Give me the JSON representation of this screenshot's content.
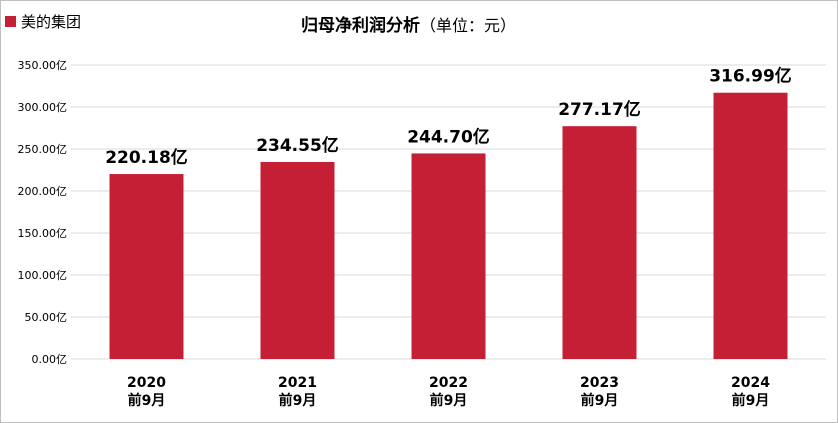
{
  "legend": {
    "label": "美的集团"
  },
  "title": {
    "main": "归母净利润分析",
    "unit": "（单位：元）"
  },
  "colors": {
    "bar": "#c41f35",
    "grid": "#d9d9d9"
  },
  "chart_data": {
    "type": "bar",
    "title": "归母净利润分析（单位：元）",
    "categories": [
      [
        "2020",
        "前9月"
      ],
      [
        "2021",
        "前9月"
      ],
      [
        "2022",
        "前9月"
      ],
      [
        "2023",
        "前9月"
      ],
      [
        "2024",
        "前9月"
      ]
    ],
    "series": [
      {
        "name": "美的集团",
        "values": [
          220.18,
          234.55,
          244.7,
          277.17,
          316.99
        ]
      }
    ],
    "data_labels": [
      "220.18亿",
      "234.55亿",
      "244.70亿",
      "277.17亿",
      "316.99亿"
    ],
    "yticks": [
      "0.00亿",
      "50.00亿",
      "100.00亿",
      "150.00亿",
      "200.00亿",
      "250.00亿",
      "300.00亿",
      "350.00亿"
    ],
    "ylim": [
      0,
      350
    ],
    "grid": true,
    "legend_position": "top-left"
  }
}
